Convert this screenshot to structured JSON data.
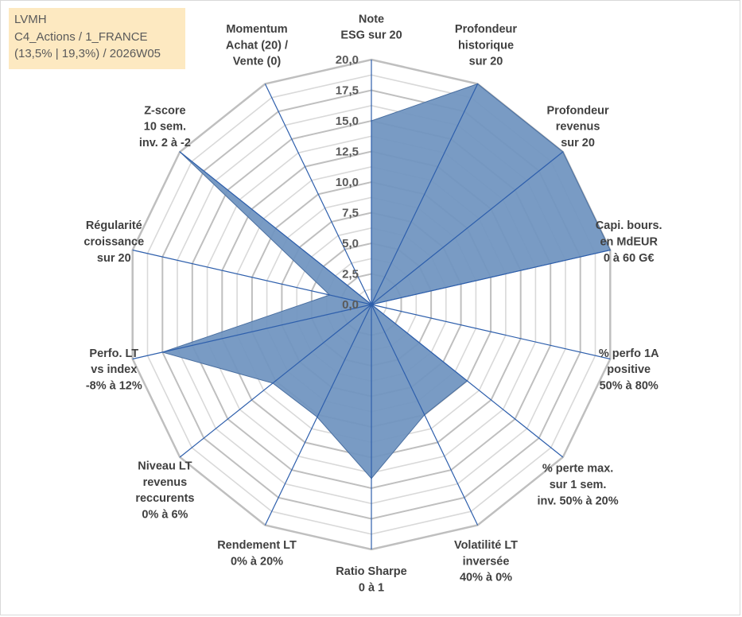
{
  "header": {
    "lines": [
      "LVMH",
      "C4_Actions / 1_FRANCE",
      "(13,5% | 19,3%) / 2026W05"
    ]
  },
  "colors": {
    "fill": "#6f93c0",
    "series_stroke": "#4a6fa0",
    "spoke": "#2e5fac",
    "grid_major": "#bfbfbf",
    "grid_minor": "#d9d9d9"
  },
  "chart_data": {
    "type": "radar",
    "title": "",
    "rmin": 0,
    "rmax": 20,
    "tick_step": 2.5,
    "tick_labels": [
      "0,0",
      "2,5",
      "5,0",
      "7,5",
      "10,0",
      "12,5",
      "15,0",
      "17,5",
      "20,0"
    ],
    "axes": [
      {
        "label": [
          "Note",
          "ESG sur 20"
        ]
      },
      {
        "label": [
          "Profondeur",
          "historique",
          "sur 20"
        ]
      },
      {
        "label": [
          "Profondeur",
          "revenus",
          "sur 20"
        ]
      },
      {
        "label": [
          "Capi. bours.",
          "en MdEUR",
          "0 à 60 G€"
        ]
      },
      {
        "label": [
          "% perfo 1A",
          "positive",
          "50% à 80%"
        ]
      },
      {
        "label": [
          "% perte max.",
          "sur 1 sem.",
          "inv. 50% à 20%"
        ]
      },
      {
        "label": [
          "Volatilité LT",
          "inversée",
          "40% à 0%"
        ]
      },
      {
        "label": [
          "Ratio Sharpe",
          "0 à 1"
        ]
      },
      {
        "label": [
          "Rendement LT",
          "0% à 20%"
        ]
      },
      {
        "label": [
          "Niveau LT",
          "revenus",
          "reccurents",
          "0% à 6%"
        ]
      },
      {
        "label": [
          "Perfo. LT",
          "vs index",
          "-8% à 12%"
        ]
      },
      {
        "label": [
          "Régularité",
          "croissance",
          "sur 20"
        ]
      },
      {
        "label": [
          "Z-score",
          "10 sem.",
          "inv. 2 à -2"
        ]
      },
      {
        "label": [
          "Momentum",
          "Achat (20) /",
          "Vente (0)"
        ]
      }
    ],
    "series": [
      {
        "values": [
          15.0,
          20.0,
          20.0,
          20.0,
          0.0,
          10.0,
          10.0,
          14.2,
          10.2,
          10.3,
          17.5,
          3.5,
          20.0,
          0.0
        ]
      }
    ]
  }
}
